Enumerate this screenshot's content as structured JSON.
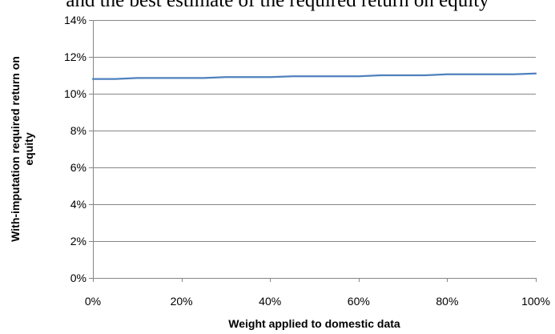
{
  "header_text": "and the best estimate of the required return on equity",
  "chart_data": {
    "type": "line",
    "title": "",
    "xlabel": "Weight applied to domestic data",
    "ylabel": "With-imputation required return on equity",
    "ylabel_lines": [
      "With-imputation required return on",
      "equity"
    ],
    "x": [
      0,
      5,
      10,
      15,
      20,
      25,
      30,
      35,
      40,
      45,
      50,
      55,
      60,
      65,
      70,
      75,
      80,
      85,
      90,
      95,
      100
    ],
    "series": [
      {
        "values": [
          10.8,
          10.8,
          10.85,
          10.85,
          10.85,
          10.85,
          10.9,
          10.9,
          10.9,
          10.95,
          10.95,
          10.95,
          10.95,
          11.0,
          11.0,
          11.0,
          11.05,
          11.05,
          11.05,
          11.05,
          11.1
        ]
      }
    ],
    "xlim": [
      0,
      100
    ],
    "ylim": [
      0,
      14
    ],
    "x_ticks": [
      0,
      20,
      40,
      60,
      80,
      100
    ],
    "x_tick_labels": [
      "0%",
      "20%",
      "40%",
      "60%",
      "80%",
      "100%"
    ],
    "y_ticks": [
      0,
      2,
      4,
      6,
      8,
      10,
      12,
      14
    ],
    "y_tick_labels": [
      "0%",
      "2%",
      "4%",
      "6%",
      "8%",
      "10%",
      "12%",
      "14%"
    ],
    "grid": "horizontal",
    "legend": "none",
    "line_color": "#4f81bd",
    "grid_color": "#868686",
    "axis_color": "#868686"
  }
}
